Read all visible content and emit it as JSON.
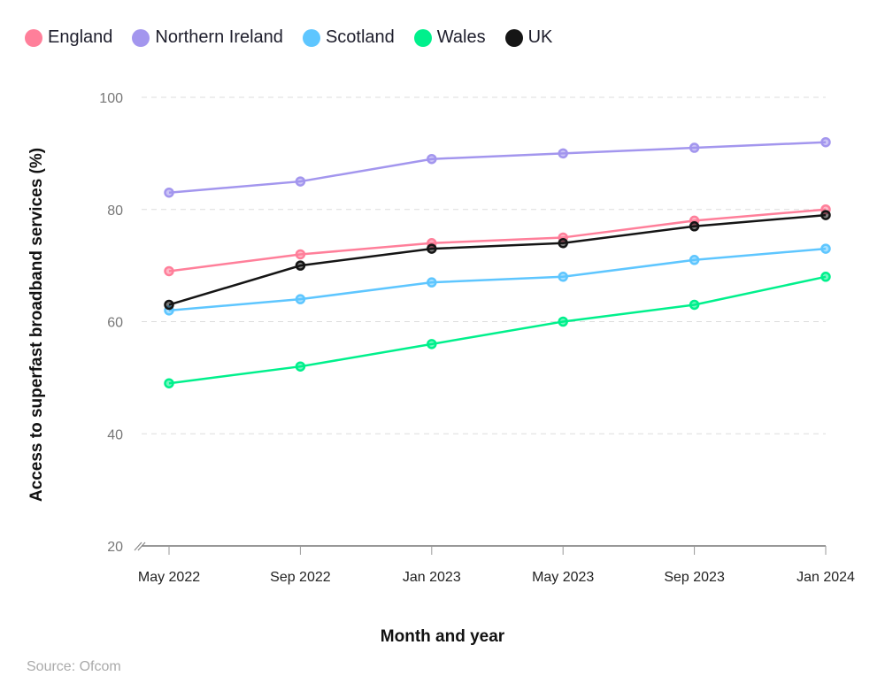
{
  "chart_data": {
    "type": "line",
    "x": [
      "May 2022",
      "Sep 2022",
      "Jan 2023",
      "May 2023",
      "Sep 2023",
      "Jan 2024"
    ],
    "xlabel": "Month and year",
    "ylabel": "Access to superfast broadband services (%)",
    "ylim": [
      20,
      100
    ],
    "yticks": [
      20,
      40,
      60,
      80,
      100
    ],
    "grid": true,
    "legend": "top-left",
    "series": [
      {
        "name": "England",
        "color": "#ff7f9a",
        "values": [
          69,
          72,
          74,
          75,
          78,
          80
        ]
      },
      {
        "name": "Northern Ireland",
        "color": "#a396ee",
        "values": [
          83,
          85,
          89,
          90,
          91,
          92
        ]
      },
      {
        "name": "Scotland",
        "color": "#5ec6ff",
        "values": [
          62,
          64,
          67,
          68,
          71,
          73
        ]
      },
      {
        "name": "Wales",
        "color": "#00f08c",
        "values": [
          49,
          52,
          56,
          60,
          63,
          68
        ]
      },
      {
        "name": "UK",
        "color": "#151515",
        "values": [
          63,
          70,
          73,
          74,
          77,
          79
        ]
      }
    ]
  },
  "source": "Source: Ofcom"
}
